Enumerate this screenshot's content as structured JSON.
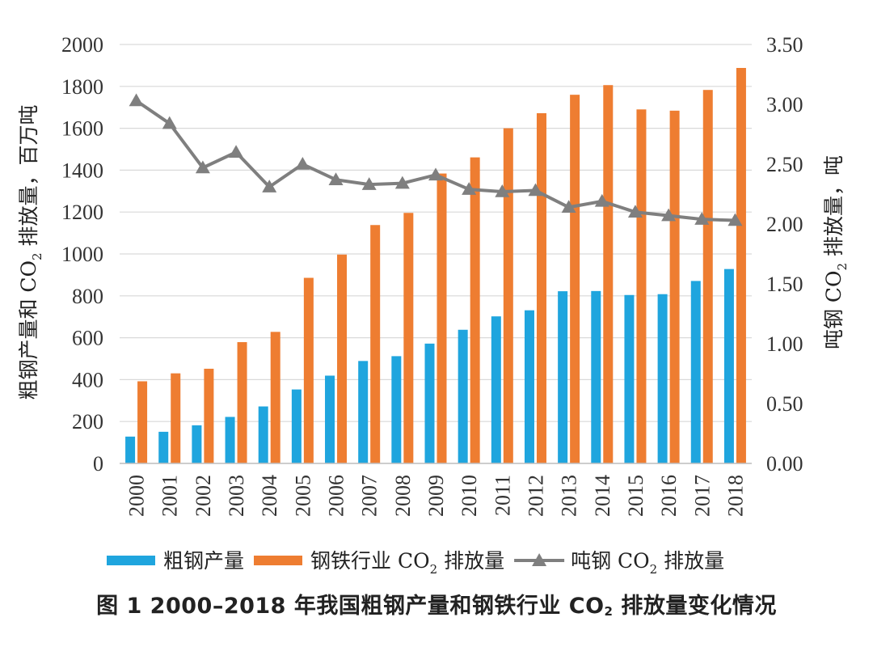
{
  "chart_data": {
    "type": "bar+line",
    "title": "图 1   2000–2018 年我国粗钢产量和钢铁行业 CO₂ 排放量变化情况",
    "caption": {
      "prefix": "图 1   2000–2018 年我国粗钢产量和钢铁行业 CO",
      "sub": "2",
      "suffix": " 排放量变化情况"
    },
    "categories": [
      "2000",
      "2001",
      "2002",
      "2003",
      "2004",
      "2005",
      "2006",
      "2007",
      "2008",
      "2009",
      "2010",
      "2011",
      "2012",
      "2013",
      "2014",
      "2015",
      "2016",
      "2017",
      "2018"
    ],
    "series": [
      {
        "name": "粗钢产量",
        "axis": "left",
        "kind": "bar",
        "color": "#1fa5de",
        "values": [
          128,
          151,
          182,
          222,
          272,
          353,
          419,
          489,
          512,
          572,
          638,
          702,
          731,
          822,
          823,
          804,
          808,
          871,
          928
        ]
      },
      {
        "name": "钢铁行业 CO₂ 排放量",
        "axis": "left",
        "kind": "bar",
        "color": "#ee7d31",
        "values": [
          392,
          430,
          452,
          579,
          628,
          886,
          997,
          1138,
          1196,
          1384,
          1461,
          1600,
          1672,
          1760,
          1806,
          1690,
          1684,
          1783,
          1888
        ]
      },
      {
        "name": "吨钢 CO₂ 排放量",
        "axis": "right",
        "kind": "line",
        "color": "#7f7f7f",
        "values": [
          3.03,
          2.84,
          2.47,
          2.6,
          2.31,
          2.5,
          2.37,
          2.33,
          2.34,
          2.41,
          2.29,
          2.27,
          2.28,
          2.14,
          2.19,
          2.1,
          2.07,
          2.04,
          2.03
        ]
      }
    ],
    "y_left": {
      "label_prefix": "粗钢产量和 CO",
      "label_sub": "2",
      "label_suffix": " 排放量，百万吨",
      "range": [
        0,
        2000
      ],
      "ticks": [
        "0",
        "200",
        "400",
        "600",
        "800",
        "1000",
        "1200",
        "1400",
        "1600",
        "1800",
        "2000"
      ]
    },
    "y_right": {
      "label_prefix": "吨钢 CO",
      "label_sub": "2",
      "label_suffix": " 排放量，吨",
      "range": [
        0,
        3.5
      ],
      "ticks": [
        "0.00",
        "0.50",
        "1.00",
        "1.50",
        "2.00",
        "2.50",
        "3.00",
        "3.50"
      ]
    },
    "legend": {
      "position": "bottom",
      "items": [
        {
          "label": "粗钢产量",
          "label_suffix": "",
          "label_sub": ""
        },
        {
          "label": "钢铁行业 CO",
          "label_sub": "2",
          "label_suffix": " 排放量"
        },
        {
          "label": "吨钢 CO",
          "label_sub": "2",
          "label_suffix": " 排放量"
        }
      ]
    },
    "grid": true
  }
}
